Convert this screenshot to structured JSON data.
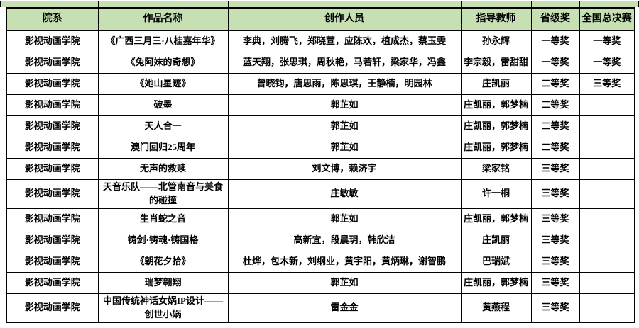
{
  "table": {
    "columns": [
      {
        "key": "department",
        "label": "院系"
      },
      {
        "key": "work",
        "label": "作品名称"
      },
      {
        "key": "creators",
        "label": "创作人员"
      },
      {
        "key": "advisor",
        "label": "指导教师"
      },
      {
        "key": "provincial_award",
        "label": "省级奖"
      },
      {
        "key": "national_final",
        "label": "全国总决赛"
      }
    ],
    "rows": [
      {
        "department": "影视动画学院",
        "work": "《广西三月三·八桂嘉年华》",
        "creators": "李典，刘腾飞，郑晓萱，应陈欢，植成杰，蔡玉雯",
        "advisor": "孙永辉",
        "provincial_award": "一等奖",
        "national_final": "一等奖"
      },
      {
        "department": "影视动画学院",
        "work": "《兔阿妹的奇想》",
        "creators": "蓝天翔，张思琪，周秋艳，马若轩，梁家华，冯鑫",
        "advisor": "李宗毅，雷甜甜",
        "provincial_award": "一等奖",
        "national_final": "一等奖"
      },
      {
        "department": "影视动画学院",
        "work": "《她山星迹》",
        "creators": "曾晓钧，唐思雨，陈思琪，王静楠，明园林",
        "advisor": "庄凯丽",
        "provincial_award": "二等奖",
        "national_final": "三等奖"
      },
      {
        "department": "影视动画学院",
        "work": "破墨",
        "creators": "郭芷如",
        "advisor": "庄凯丽，郭梦楠",
        "provincial_award": "二等奖",
        "national_final": ""
      },
      {
        "department": "影视动画学院",
        "work": "天人合一",
        "creators": "郭芷如",
        "advisor": "庄凯丽，郭梦楠",
        "provincial_award": "二等奖",
        "national_final": ""
      },
      {
        "department": "影视动画学院",
        "work": "澳门回归25周年",
        "creators": "郭芷如",
        "advisor": "庄凯丽，郭梦楠",
        "provincial_award": "二等奖",
        "national_final": ""
      },
      {
        "department": "影视动画学院",
        "work": "无声的救赎",
        "creators": "刘文博，赖济宇",
        "advisor": "梁家铭",
        "provincial_award": "三等奖",
        "national_final": ""
      },
      {
        "department": "影视动画学院",
        "work": "天音乐队——北管南音与美食的碰撞",
        "creators": "庄敏敏",
        "advisor": "许一桐",
        "provincial_award": "三等奖",
        "national_final": ""
      },
      {
        "department": "影视动画学院",
        "work": "生肖蛇之音",
        "creators": "郭芷如",
        "advisor": "庄凯丽，郭梦楠",
        "provincial_award": "三等奖",
        "national_final": ""
      },
      {
        "department": "影视动画学院",
        "work": "铸剑·铸魂·铸国格",
        "creators": "高新宜，段晨玥，韩欣洁",
        "advisor": "庄凯丽",
        "provincial_award": "三等奖",
        "national_final": ""
      },
      {
        "department": "影视动画学院",
        "work": "《朝花夕拾》",
        "creators": "杜烨，包木新，刘纲业，黄宇阳，黄炳琳，谢智鹏",
        "advisor": "巴瑞斌",
        "provincial_award": "三等奖",
        "national_final": ""
      },
      {
        "department": "影视动画学院",
        "work": "瑞梦翱翔",
        "creators": "郭芷如",
        "advisor": "庄凯丽，郭梦楠",
        "provincial_award": "三等奖",
        "national_final": ""
      },
      {
        "department": "影视动画学院",
        "work": "中国传统神话女娲IP设计——创世小娲",
        "creators": "雷金金",
        "advisor": "黄燕程",
        "provincial_award": "三等奖",
        "national_final": ""
      }
    ]
  },
  "colors": {
    "header_bg": "#c6e0b4",
    "grid_border": "#000000",
    "text": "#000000",
    "page_bg": "#ffffff"
  }
}
